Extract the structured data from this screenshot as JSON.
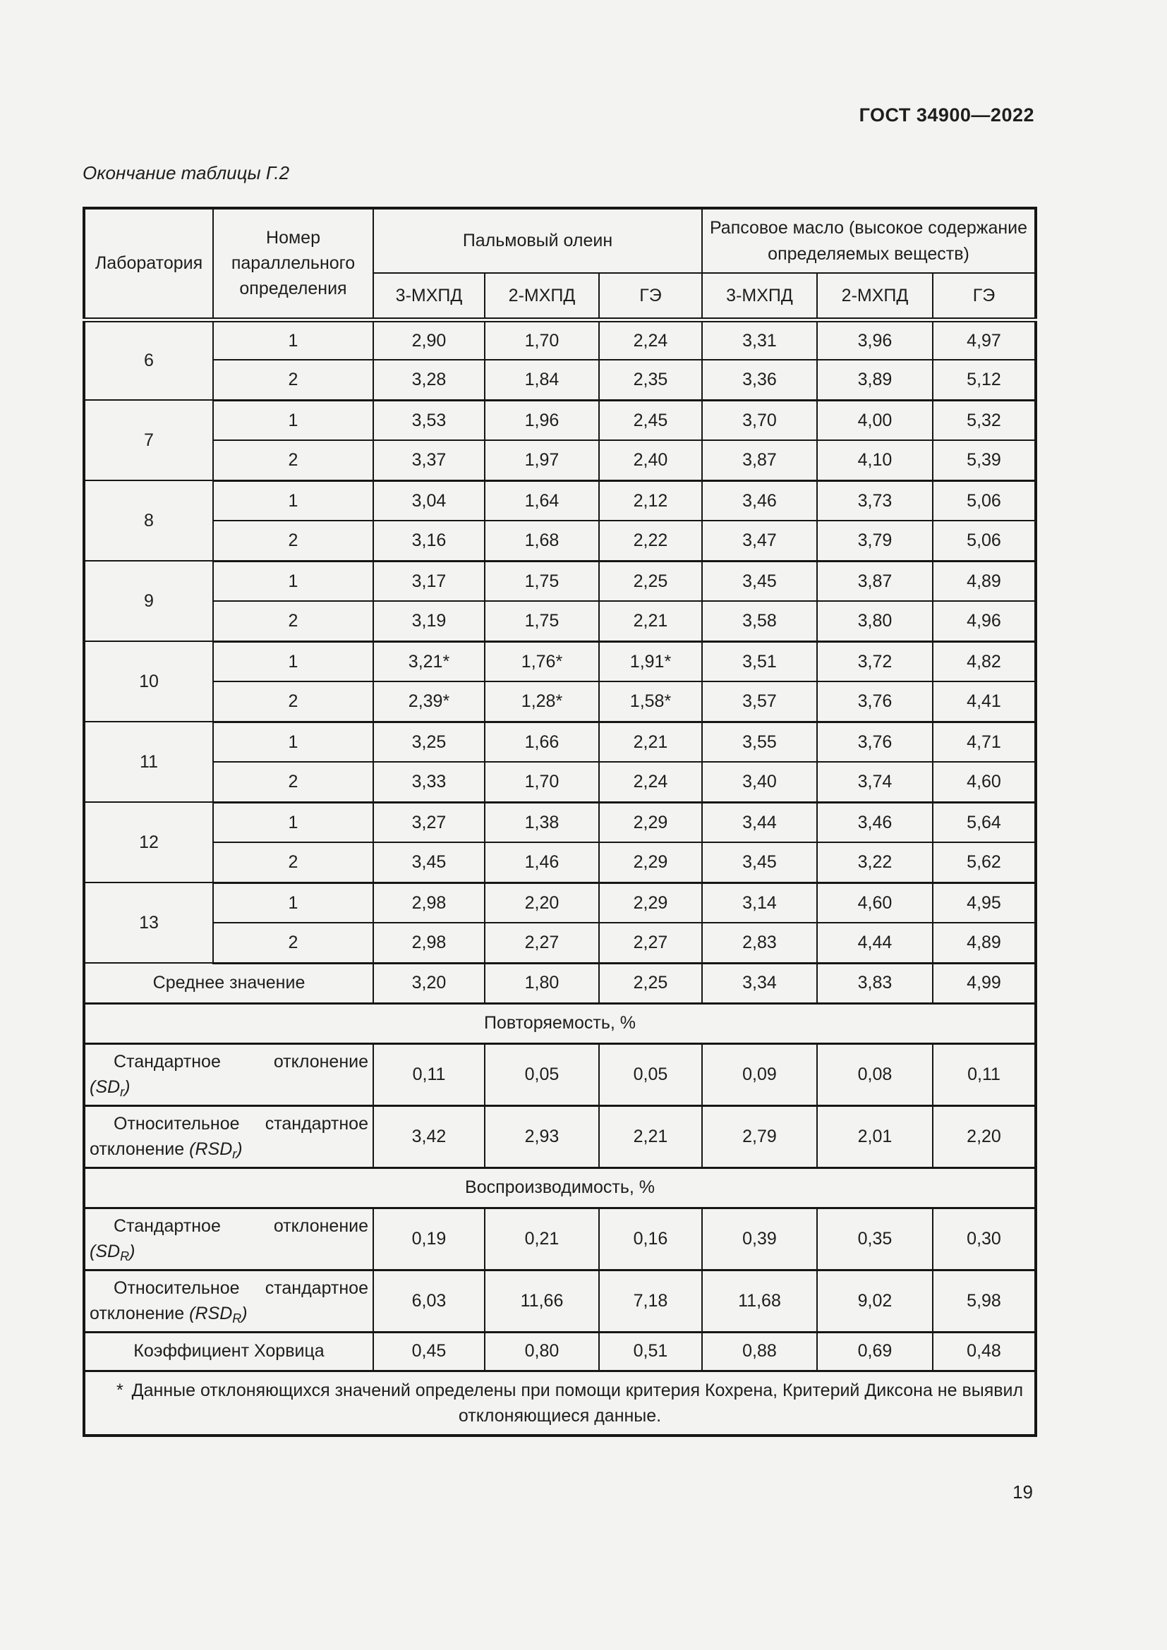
{
  "page": {
    "doc_number": "ГОСТ 34900—2022",
    "table_caption": "Окончание таблицы Г.2",
    "page_number": "19"
  },
  "table": {
    "header": {
      "laboratory": "Лаборатория",
      "parallel_number": "Номер параллельного определения",
      "group_palm": "Пальмовый олеин",
      "group_rapeseed": "Рапсовое масло (высокое содержание определяемых веществ)",
      "sub_columns": [
        "3-МХПД",
        "2-МХПД",
        "ГЭ",
        "3-МХПД",
        "2-МХПД",
        "ГЭ"
      ]
    },
    "labs": [
      {
        "lab": "6",
        "rows": [
          {
            "num": "1",
            "values": [
              "2,90",
              "1,70",
              "2,24",
              "3,31",
              "3,96",
              "4,97"
            ]
          },
          {
            "num": "2",
            "values": [
              "3,28",
              "1,84",
              "2,35",
              "3,36",
              "3,89",
              "5,12"
            ]
          }
        ]
      },
      {
        "lab": "7",
        "rows": [
          {
            "num": "1",
            "values": [
              "3,53",
              "1,96",
              "2,45",
              "3,70",
              "4,00",
              "5,32"
            ]
          },
          {
            "num": "2",
            "values": [
              "3,37",
              "1,97",
              "2,40",
              "3,87",
              "4,10",
              "5,39"
            ]
          }
        ]
      },
      {
        "lab": "8",
        "rows": [
          {
            "num": "1",
            "values": [
              "3,04",
              "1,64",
              "2,12",
              "3,46",
              "3,73",
              "5,06"
            ]
          },
          {
            "num": "2",
            "values": [
              "3,16",
              "1,68",
              "2,22",
              "3,47",
              "3,79",
              "5,06"
            ]
          }
        ]
      },
      {
        "lab": "9",
        "rows": [
          {
            "num": "1",
            "values": [
              "3,17",
              "1,75",
              "2,25",
              "3,45",
              "3,87",
              "4,89"
            ]
          },
          {
            "num": "2",
            "values": [
              "3,19",
              "1,75",
              "2,21",
              "3,58",
              "3,80",
              "4,96"
            ]
          }
        ]
      },
      {
        "lab": "10",
        "rows": [
          {
            "num": "1",
            "values": [
              "3,21*",
              "1,76*",
              "1,91*",
              "3,51",
              "3,72",
              "4,82"
            ]
          },
          {
            "num": "2",
            "values": [
              "2,39*",
              "1,28*",
              "1,58*",
              "3,57",
              "3,76",
              "4,41"
            ]
          }
        ]
      },
      {
        "lab": "11",
        "rows": [
          {
            "num": "1",
            "values": [
              "3,25",
              "1,66",
              "2,21",
              "3,55",
              "3,76",
              "4,71"
            ]
          },
          {
            "num": "2",
            "values": [
              "3,33",
              "1,70",
              "2,24",
              "3,40",
              "3,74",
              "4,60"
            ]
          }
        ]
      },
      {
        "lab": "12",
        "rows": [
          {
            "num": "1",
            "values": [
              "3,27",
              "1,38",
              "2,29",
              "3,44",
              "3,46",
              "5,64"
            ]
          },
          {
            "num": "2",
            "values": [
              "3,45",
              "1,46",
              "2,29",
              "3,45",
              "3,22",
              "5,62"
            ]
          }
        ]
      },
      {
        "lab": "13",
        "rows": [
          {
            "num": "1",
            "values": [
              "2,98",
              "2,20",
              "2,29",
              "3,14",
              "4,60",
              "4,95"
            ]
          },
          {
            "num": "2",
            "values": [
              "2,98",
              "2,27",
              "2,27",
              "2,83",
              "4,44",
              "4,89"
            ]
          }
        ]
      }
    ],
    "mean_row": {
      "label": "Среднее значение",
      "values": [
        "3,20",
        "1,80",
        "2,25",
        "3,34",
        "3,83",
        "4,99"
      ]
    },
    "repeatability": {
      "title": "Повторяемость, %",
      "sd": {
        "line1": [
          "Стандартное",
          "отклонение"
        ],
        "line2_prefix": "",
        "symbol": "SD",
        "subscript": "r",
        "values": [
          "0,11",
          "0,05",
          "0,05",
          "0,09",
          "0,08",
          "0,11"
        ]
      },
      "rsd": {
        "line1": [
          "Относительное",
          "стандартное"
        ],
        "line2_prefix": "отклонение ",
        "symbol": "RSD",
        "subscript": "r",
        "values": [
          "3,42",
          "2,93",
          "2,21",
          "2,79",
          "2,01",
          "2,20"
        ]
      }
    },
    "reproducibility": {
      "title": "Воспроизводимость, %",
      "sd": {
        "line1": [
          "Стандартное",
          "отклонение"
        ],
        "line2_prefix": "",
        "symbol": "SD",
        "subscript": "R",
        "values": [
          "0,19",
          "0,21",
          "0,16",
          "0,39",
          "0,35",
          "0,30"
        ]
      },
      "rsd": {
        "line1": [
          "Относительное",
          "стандартное"
        ],
        "line2_prefix": "отклонение ",
        "symbol": "RSD",
        "subscript": "R",
        "values": [
          "6,03",
          "11,66",
          "7,18",
          "11,68",
          "9,02",
          "5,98"
        ]
      }
    },
    "horwitz_row": {
      "label": "Коэффициент Хорвица",
      "values": [
        "0,45",
        "0,80",
        "0,51",
        "0,88",
        "0,69",
        "0,48"
      ]
    },
    "footnote": {
      "marker": "*",
      "line1": "Данные отклоняющихся значений определены при помощи критерия Кохрена, Критерий Диксона не выявил",
      "line2": "отклоняющиеся данные."
    }
  }
}
